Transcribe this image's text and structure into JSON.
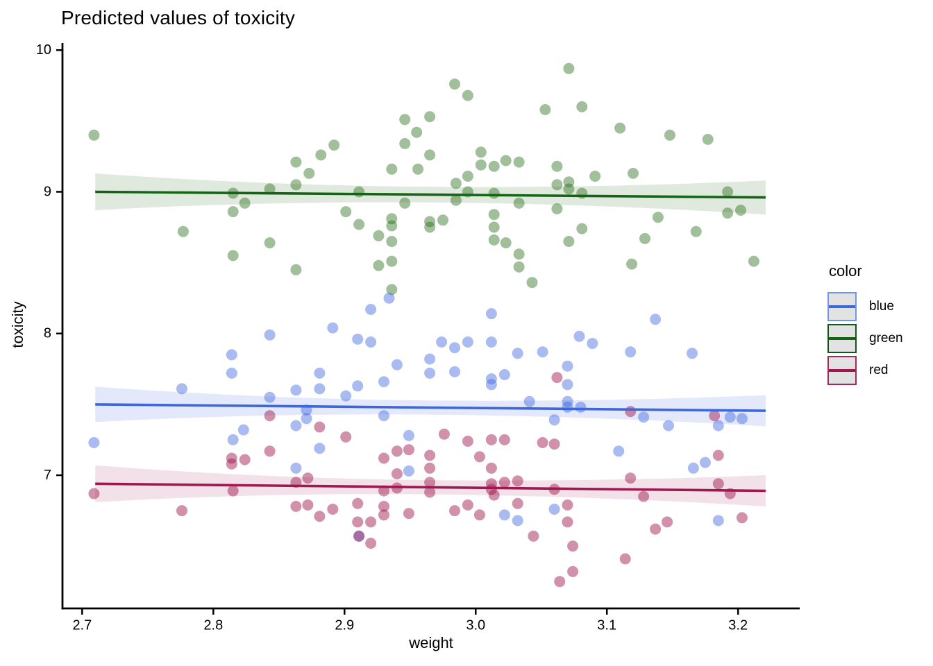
{
  "title": "Predicted values of toxicity",
  "axes": {
    "x": {
      "label": "weight",
      "ticks": [
        "2.7",
        "2.8",
        "2.9",
        "3.0",
        "3.1",
        "3.2"
      ],
      "tick_values": [
        2.7,
        2.8,
        2.9,
        3.0,
        3.1,
        3.2
      ]
    },
    "y": {
      "label": "toxicity",
      "ticks": [
        "7",
        "8",
        "9",
        "10"
      ],
      "tick_values": [
        7,
        8,
        9,
        10
      ]
    }
  },
  "legend": {
    "title": "color",
    "items": [
      {
        "label": "blue",
        "border_color": "#6e96ec",
        "line_color": "#3e68d8"
      },
      {
        "label": "green",
        "border_color": "#14531a",
        "line_color": "#156315"
      },
      {
        "label": "red",
        "border_color": "#a2295a",
        "line_color": "#a01850"
      }
    ]
  },
  "chart_data": {
    "type": "scatter",
    "title": "Predicted values of toxicity",
    "xlabel": "weight",
    "ylabel": "toxicity",
    "xlim": [
      2.685,
      3.247
    ],
    "ylim": [
      6.06,
      10.05
    ],
    "grid": false,
    "legend_position": "right",
    "point_radius": 8,
    "series": [
      {
        "name": "green",
        "point_color": "rgba(34,102,17,0.42)",
        "line_color": "#156315",
        "ribbon_color": "rgba(34,102,17,0.14)",
        "trend": {
          "x": [
            2.71,
            3.221
          ],
          "y": [
            9.0,
            8.96
          ]
        },
        "ribbon_half": [
          0.13,
          0.055,
          0.12
        ],
        "points": [
          [
            2.709,
            9.4
          ],
          [
            2.777,
            8.72
          ],
          [
            2.815,
            8.99
          ],
          [
            2.815,
            8.86
          ],
          [
            2.824,
            8.92
          ],
          [
            2.843,
            9.02
          ],
          [
            2.843,
            8.64
          ],
          [
            2.863,
            9.21
          ],
          [
            2.863,
            9.05
          ],
          [
            2.873,
            9.13
          ],
          [
            2.882,
            9.26
          ],
          [
            2.892,
            9.33
          ],
          [
            2.946,
            9.51
          ],
          [
            2.955,
            9.42
          ],
          [
            2.946,
            9.34
          ],
          [
            2.936,
            9.16
          ],
          [
            2.956,
            9.16
          ],
          [
            2.911,
            9.0
          ],
          [
            2.946,
            8.92
          ],
          [
            2.901,
            8.86
          ],
          [
            2.911,
            8.77
          ],
          [
            2.926,
            8.69
          ],
          [
            2.936,
            8.81
          ],
          [
            2.936,
            8.76
          ],
          [
            2.936,
            8.65
          ],
          [
            2.926,
            8.48
          ],
          [
            2.936,
            8.51
          ],
          [
            2.863,
            8.45
          ],
          [
            2.815,
            8.55
          ],
          [
            2.936,
            8.31
          ],
          [
            2.965,
            9.53
          ],
          [
            2.984,
            9.76
          ],
          [
            2.994,
            9.68
          ],
          [
            3.053,
            9.58
          ],
          [
            3.081,
            9.6
          ],
          [
            3.071,
            9.87
          ],
          [
            3.11,
            9.45
          ],
          [
            3.148,
            9.4
          ],
          [
            3.177,
            9.37
          ],
          [
            2.965,
            9.26
          ],
          [
            3.004,
            9.28
          ],
          [
            3.004,
            9.19
          ],
          [
            3.014,
            9.18
          ],
          [
            3.023,
            9.22
          ],
          [
            3.033,
            9.21
          ],
          [
            3.062,
            9.18
          ],
          [
            2.994,
            9.11
          ],
          [
            3.091,
            9.11
          ],
          [
            3.12,
            9.13
          ],
          [
            2.985,
            9.06
          ],
          [
            3.062,
            9.05
          ],
          [
            3.071,
            9.07
          ],
          [
            3.071,
            9.02
          ],
          [
            2.994,
            9.0
          ],
          [
            3.014,
            8.99
          ],
          [
            3.081,
            8.99
          ],
          [
            2.985,
            8.94
          ],
          [
            3.033,
            8.92
          ],
          [
            3.062,
            8.88
          ],
          [
            2.965,
            8.79
          ],
          [
            2.975,
            8.8
          ],
          [
            2.965,
            8.75
          ],
          [
            3.014,
            8.84
          ],
          [
            3.192,
            9.0
          ],
          [
            3.202,
            8.87
          ],
          [
            3.192,
            8.85
          ],
          [
            3.139,
            8.82
          ],
          [
            3.014,
            8.75
          ],
          [
            3.014,
            8.66
          ],
          [
            3.023,
            8.64
          ],
          [
            3.081,
            8.74
          ],
          [
            3.129,
            8.67
          ],
          [
            3.168,
            8.72
          ],
          [
            3.033,
            8.56
          ],
          [
            3.033,
            8.47
          ],
          [
            3.043,
            8.36
          ],
          [
            3.071,
            8.65
          ],
          [
            3.119,
            8.49
          ],
          [
            3.212,
            8.51
          ]
        ]
      },
      {
        "name": "blue",
        "point_color": "rgba(65,105,225,0.45)",
        "line_color": "#3e68d8",
        "ribbon_color": "rgba(65,105,225,0.15)",
        "trend": {
          "x": [
            2.71,
            3.221
          ],
          "y": [
            7.5,
            7.455
          ]
        },
        "ribbon_half": [
          0.125,
          0.05,
          0.11
        ],
        "points": [
          [
            2.709,
            7.23
          ],
          [
            2.776,
            7.61
          ],
          [
            2.814,
            7.85
          ],
          [
            2.814,
            7.72
          ],
          [
            2.843,
            7.99
          ],
          [
            2.815,
            7.25
          ],
          [
            2.823,
            7.32
          ],
          [
            2.843,
            7.55
          ],
          [
            2.863,
            7.6
          ],
          [
            2.871,
            7.46
          ],
          [
            2.871,
            7.4
          ],
          [
            2.863,
            7.35
          ],
          [
            2.863,
            7.05
          ],
          [
            2.881,
            7.72
          ],
          [
            2.881,
            7.61
          ],
          [
            2.881,
            7.19
          ],
          [
            2.891,
            8.04
          ],
          [
            2.901,
            7.56
          ],
          [
            2.91,
            7.96
          ],
          [
            2.91,
            7.63
          ],
          [
            2.92,
            8.17
          ],
          [
            2.934,
            8.25
          ],
          [
            2.92,
            7.94
          ],
          [
            2.93,
            7.66
          ],
          [
            2.93,
            7.42
          ],
          [
            2.94,
            7.78
          ],
          [
            2.949,
            7.28
          ],
          [
            3.012,
            8.14
          ],
          [
            2.974,
            7.94
          ],
          [
            2.984,
            7.9
          ],
          [
            2.994,
            7.94
          ],
          [
            2.965,
            7.82
          ],
          [
            2.965,
            7.72
          ],
          [
            2.984,
            7.73
          ],
          [
            3.012,
            7.94
          ],
          [
            3.012,
            7.68
          ],
          [
            3.012,
            7.64
          ],
          [
            3.022,
            7.71
          ],
          [
            3.032,
            7.86
          ],
          [
            3.051,
            7.87
          ],
          [
            3.07,
            7.77
          ],
          [
            3.07,
            7.64
          ],
          [
            3.041,
            7.52
          ],
          [
            3.07,
            7.52
          ],
          [
            3.07,
            7.48
          ],
          [
            3.079,
            7.98
          ],
          [
            3.08,
            7.48
          ],
          [
            3.089,
            7.93
          ],
          [
            3.118,
            7.87
          ],
          [
            3.128,
            7.41
          ],
          [
            3.137,
            8.1
          ],
          [
            3.147,
            7.35
          ],
          [
            3.165,
            7.86
          ],
          [
            3.166,
            7.05
          ],
          [
            3.175,
            7.09
          ],
          [
            3.185,
            7.35
          ],
          [
            3.185,
            6.68
          ],
          [
            3.194,
            7.41
          ],
          [
            3.203,
            7.4
          ],
          [
            3.06,
            7.39
          ],
          [
            3.109,
            7.17
          ],
          [
            3.022,
            6.72
          ],
          [
            3.032,
            6.68
          ],
          [
            3.06,
            6.76
          ],
          [
            2.949,
            7.03
          ],
          [
            2.911,
            6.57
          ]
        ]
      },
      {
        "name": "red",
        "point_color": "rgba(158,26,79,0.48)",
        "line_color": "#a01850",
        "ribbon_color": "rgba(158,26,79,0.13)",
        "trend": {
          "x": [
            2.71,
            3.221
          ],
          "y": [
            6.94,
            6.89
          ]
        },
        "ribbon_half": [
          0.13,
          0.05,
          0.11
        ],
        "points": [
          [
            2.709,
            6.87
          ],
          [
            2.776,
            6.75
          ],
          [
            2.814,
            7.12
          ],
          [
            2.814,
            7.08
          ],
          [
            2.824,
            7.11
          ],
          [
            2.843,
            7.17
          ],
          [
            2.843,
            7.42
          ],
          [
            2.815,
            6.89
          ],
          [
            2.863,
            6.95
          ],
          [
            2.872,
            6.98
          ],
          [
            2.863,
            6.78
          ],
          [
            2.872,
            6.79
          ],
          [
            2.881,
            7.34
          ],
          [
            2.881,
            6.71
          ],
          [
            2.891,
            6.76
          ],
          [
            2.901,
            7.27
          ],
          [
            2.91,
            6.8
          ],
          [
            2.91,
            6.67
          ],
          [
            2.911,
            6.57
          ],
          [
            2.92,
            6.67
          ],
          [
            2.92,
            6.52
          ],
          [
            2.93,
            7.12
          ],
          [
            2.93,
            6.89
          ],
          [
            2.93,
            6.78
          ],
          [
            2.93,
            6.72
          ],
          [
            2.94,
            7.17
          ],
          [
            2.94,
            7.01
          ],
          [
            2.94,
            6.91
          ],
          [
            2.949,
            7.18
          ],
          [
            2.949,
            6.73
          ],
          [
            3.062,
            7.69
          ],
          [
            2.976,
            7.29
          ],
          [
            2.965,
            7.14
          ],
          [
            2.965,
            7.05
          ],
          [
            2.965,
            6.95
          ],
          [
            2.965,
            6.88
          ],
          [
            2.994,
            7.24
          ],
          [
            2.994,
            6.79
          ],
          [
            2.984,
            6.75
          ],
          [
            3.003,
            7.13
          ],
          [
            3.003,
            6.72
          ],
          [
            3.012,
            7.25
          ],
          [
            3.012,
            7.05
          ],
          [
            3.012,
            6.94
          ],
          [
            3.012,
            6.9
          ],
          [
            3.014,
            6.86
          ],
          [
            3.022,
            7.25
          ],
          [
            3.022,
            6.95
          ],
          [
            3.032,
            6.96
          ],
          [
            3.032,
            6.8
          ],
          [
            3.044,
            6.57
          ],
          [
            3.051,
            7.23
          ],
          [
            3.06,
            7.22
          ],
          [
            3.06,
            6.9
          ],
          [
            3.07,
            6.79
          ],
          [
            3.074,
            6.5
          ],
          [
            3.07,
            6.67
          ],
          [
            3.074,
            6.32
          ],
          [
            3.064,
            6.25
          ],
          [
            3.114,
            6.41
          ],
          [
            3.118,
            7.45
          ],
          [
            3.118,
            6.98
          ],
          [
            3.128,
            6.85
          ],
          [
            3.137,
            6.62
          ],
          [
            3.146,
            6.67
          ],
          [
            3.182,
            7.42
          ],
          [
            3.185,
            7.14
          ],
          [
            3.185,
            6.94
          ],
          [
            3.194,
            6.87
          ],
          [
            3.203,
            6.7
          ]
        ]
      }
    ]
  }
}
